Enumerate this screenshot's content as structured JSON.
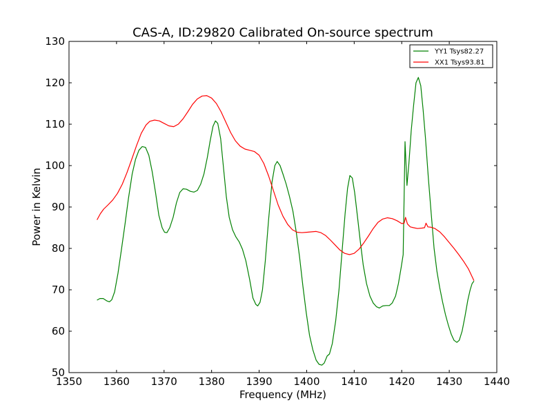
{
  "chart_data": {
    "type": "line",
    "title": "CAS-A, ID:29820 Calibrated On-source spectrum",
    "xlabel": "Frequency (MHz)",
    "ylabel": "Power in Kelvin",
    "xlim": [
      1350,
      1440
    ],
    "ylim": [
      50,
      130
    ],
    "xticks": [
      1350,
      1360,
      1370,
      1380,
      1390,
      1400,
      1410,
      1420,
      1430,
      1440
    ],
    "yticks": [
      50,
      60,
      70,
      80,
      90,
      100,
      110,
      120,
      130
    ],
    "grid": false,
    "legend_position": "top-right",
    "series": [
      {
        "name": "YY1 Tsys82.27",
        "color": "#008000",
        "points": [
          [
            1355.9,
            67.5
          ],
          [
            1356.5,
            67.9
          ],
          [
            1357.2,
            67.9
          ],
          [
            1358.0,
            67.3
          ],
          [
            1358.5,
            67.1
          ],
          [
            1359.0,
            67.6
          ],
          [
            1359.6,
            69.5
          ],
          [
            1360.3,
            74.0
          ],
          [
            1361.0,
            79.5
          ],
          [
            1361.8,
            86.0
          ],
          [
            1362.5,
            92.0
          ],
          [
            1363.3,
            98.0
          ],
          [
            1364.0,
            101.5
          ],
          [
            1364.7,
            103.7
          ],
          [
            1365.4,
            104.6
          ],
          [
            1366.1,
            104.4
          ],
          [
            1366.8,
            102.5
          ],
          [
            1367.5,
            98.5
          ],
          [
            1368.2,
            93.5
          ],
          [
            1368.9,
            88.0
          ],
          [
            1369.6,
            85.0
          ],
          [
            1370.1,
            83.9
          ],
          [
            1370.6,
            83.8
          ],
          [
            1371.2,
            85.0
          ],
          [
            1371.9,
            87.5
          ],
          [
            1372.6,
            91.0
          ],
          [
            1373.3,
            93.5
          ],
          [
            1374.0,
            94.4
          ],
          [
            1374.7,
            94.3
          ],
          [
            1375.5,
            93.8
          ],
          [
            1376.3,
            93.6
          ],
          [
            1377.0,
            94.0
          ],
          [
            1377.7,
            95.5
          ],
          [
            1378.4,
            98.0
          ],
          [
            1379.1,
            102.0
          ],
          [
            1379.7,
            106.0
          ],
          [
            1380.3,
            109.5
          ],
          [
            1380.8,
            110.8
          ],
          [
            1381.3,
            110.2
          ],
          [
            1381.9,
            106.5
          ],
          [
            1382.5,
            99.5
          ],
          [
            1383.1,
            92.5
          ],
          [
            1383.7,
            87.5
          ],
          [
            1384.4,
            84.5
          ],
          [
            1385.1,
            82.8
          ],
          [
            1385.8,
            81.6
          ],
          [
            1386.5,
            79.8
          ],
          [
            1387.2,
            77.0
          ],
          [
            1388.0,
            72.5
          ],
          [
            1388.7,
            68.0
          ],
          [
            1389.3,
            66.5
          ],
          [
            1389.7,
            66.1
          ],
          [
            1390.2,
            67.0
          ],
          [
            1390.7,
            70.0
          ],
          [
            1391.3,
            77.0
          ],
          [
            1392.0,
            87.0
          ],
          [
            1392.7,
            96.0
          ],
          [
            1393.3,
            100.0
          ],
          [
            1393.8,
            101.0
          ],
          [
            1394.4,
            100.0
          ],
          [
            1395.0,
            98.0
          ],
          [
            1395.7,
            95.5
          ],
          [
            1396.4,
            92.5
          ],
          [
            1397.1,
            89.0
          ],
          [
            1397.8,
            84.0
          ],
          [
            1398.5,
            78.0
          ],
          [
            1399.2,
            71.0
          ],
          [
            1399.9,
            64.5
          ],
          [
            1400.6,
            59.0
          ],
          [
            1401.3,
            55.5
          ],
          [
            1402.0,
            53.0
          ],
          [
            1402.6,
            52.0
          ],
          [
            1403.2,
            51.8
          ],
          [
            1403.7,
            52.3
          ],
          [
            1404.3,
            54.0
          ],
          [
            1404.8,
            54.5
          ],
          [
            1405.4,
            57.0
          ],
          [
            1406.1,
            62.5
          ],
          [
            1406.8,
            70.0
          ],
          [
            1407.5,
            80.0
          ],
          [
            1408.1,
            88.5
          ],
          [
            1408.6,
            94.5
          ],
          [
            1409.1,
            97.6
          ],
          [
            1409.6,
            97.0
          ],
          [
            1410.1,
            93.5
          ],
          [
            1410.7,
            87.5
          ],
          [
            1411.3,
            81.5
          ],
          [
            1411.9,
            76.0
          ],
          [
            1412.6,
            71.5
          ],
          [
            1413.3,
            68.5
          ],
          [
            1414.0,
            66.8
          ],
          [
            1414.7,
            65.9
          ],
          [
            1415.3,
            65.6
          ],
          [
            1416.0,
            66.1
          ],
          [
            1416.7,
            66.2
          ],
          [
            1417.4,
            66.2
          ],
          [
            1418.0,
            66.8
          ],
          [
            1418.7,
            68.5
          ],
          [
            1419.3,
            71.5
          ],
          [
            1419.9,
            75.5
          ],
          [
            1420.3,
            78.5
          ],
          [
            1420.7,
            105.8
          ],
          [
            1421.1,
            95.2
          ],
          [
            1421.5,
            100.5
          ],
          [
            1422.0,
            108.5
          ],
          [
            1422.5,
            114.5
          ],
          [
            1423.0,
            120.0
          ],
          [
            1423.5,
            121.3
          ],
          [
            1424.0,
            119.3
          ],
          [
            1424.5,
            113.5
          ],
          [
            1425.0,
            106.5
          ],
          [
            1425.6,
            97.0
          ],
          [
            1426.2,
            88.5
          ],
          [
            1426.8,
            80.0
          ],
          [
            1427.4,
            74.5
          ],
          [
            1428.0,
            70.5
          ],
          [
            1428.6,
            67.0
          ],
          [
            1429.2,
            64.0
          ],
          [
            1429.8,
            61.5
          ],
          [
            1430.4,
            59.3
          ],
          [
            1431.0,
            57.8
          ],
          [
            1431.6,
            57.3
          ],
          [
            1432.1,
            57.8
          ],
          [
            1432.7,
            60.0
          ],
          [
            1433.3,
            63.5
          ],
          [
            1433.9,
            67.5
          ],
          [
            1434.4,
            70.0
          ],
          [
            1434.8,
            71.5
          ],
          [
            1435.2,
            72.1
          ]
        ]
      },
      {
        "name": "XX1 Tsys93.81",
        "color": "#ff0000",
        "points": [
          [
            1355.9,
            86.9
          ],
          [
            1356.6,
            88.4
          ],
          [
            1357.3,
            89.5
          ],
          [
            1358.2,
            90.5
          ],
          [
            1359.2,
            91.7
          ],
          [
            1360.2,
            93.3
          ],
          [
            1361.2,
            95.5
          ],
          [
            1362.2,
            98.3
          ],
          [
            1363.2,
            101.5
          ],
          [
            1364.2,
            104.8
          ],
          [
            1365.2,
            107.8
          ],
          [
            1366.2,
            109.8
          ],
          [
            1367.0,
            110.7
          ],
          [
            1368.0,
            111.0
          ],
          [
            1369.0,
            110.8
          ],
          [
            1370.0,
            110.2
          ],
          [
            1371.0,
            109.6
          ],
          [
            1372.0,
            109.4
          ],
          [
            1373.0,
            110.0
          ],
          [
            1374.0,
            111.3
          ],
          [
            1375.0,
            113.0
          ],
          [
            1376.0,
            114.8
          ],
          [
            1377.0,
            116.1
          ],
          [
            1378.0,
            116.8
          ],
          [
            1379.0,
            116.9
          ],
          [
            1380.0,
            116.3
          ],
          [
            1381.0,
            115.0
          ],
          [
            1382.0,
            113.0
          ],
          [
            1383.0,
            110.5
          ],
          [
            1384.0,
            108.0
          ],
          [
            1385.0,
            106.0
          ],
          [
            1386.0,
            104.7
          ],
          [
            1387.0,
            104.0
          ],
          [
            1388.0,
            103.7
          ],
          [
            1389.0,
            103.4
          ],
          [
            1390.0,
            102.5
          ],
          [
            1391.0,
            100.5
          ],
          [
            1392.0,
            97.5
          ],
          [
            1393.0,
            94.0
          ],
          [
            1394.0,
            90.5
          ],
          [
            1395.0,
            87.8
          ],
          [
            1396.0,
            85.8
          ],
          [
            1397.0,
            84.5
          ],
          [
            1398.0,
            83.9
          ],
          [
            1399.0,
            83.8
          ],
          [
            1400.0,
            83.9
          ],
          [
            1401.0,
            84.0
          ],
          [
            1402.0,
            84.1
          ],
          [
            1403.0,
            83.8
          ],
          [
            1404.0,
            83.1
          ],
          [
            1405.0,
            82.0
          ],
          [
            1406.0,
            80.8
          ],
          [
            1407.0,
            79.6
          ],
          [
            1408.0,
            78.8
          ],
          [
            1409.0,
            78.5
          ],
          [
            1410.0,
            78.8
          ],
          [
            1411.0,
            79.8
          ],
          [
            1412.0,
            81.3
          ],
          [
            1413.0,
            83.0
          ],
          [
            1414.0,
            84.8
          ],
          [
            1415.0,
            86.3
          ],
          [
            1416.0,
            87.1
          ],
          [
            1417.0,
            87.4
          ],
          [
            1418.0,
            87.2
          ],
          [
            1419.0,
            86.7
          ],
          [
            1420.0,
            86.0
          ],
          [
            1420.5,
            86.1
          ],
          [
            1420.8,
            87.5
          ],
          [
            1421.2,
            85.9
          ],
          [
            1421.8,
            85.2
          ],
          [
            1422.5,
            85.0
          ],
          [
            1423.3,
            84.8
          ],
          [
            1424.2,
            84.9
          ],
          [
            1424.8,
            85.0
          ],
          [
            1425.1,
            86.1
          ],
          [
            1425.5,
            85.2
          ],
          [
            1426.2,
            85.1
          ],
          [
            1427.0,
            84.8
          ],
          [
            1428.0,
            84.0
          ],
          [
            1429.0,
            82.8
          ],
          [
            1430.0,
            81.4
          ],
          [
            1431.0,
            80.0
          ],
          [
            1432.0,
            78.5
          ],
          [
            1433.0,
            76.9
          ],
          [
            1434.0,
            75.1
          ],
          [
            1435.2,
            72.2
          ]
        ]
      }
    ]
  }
}
